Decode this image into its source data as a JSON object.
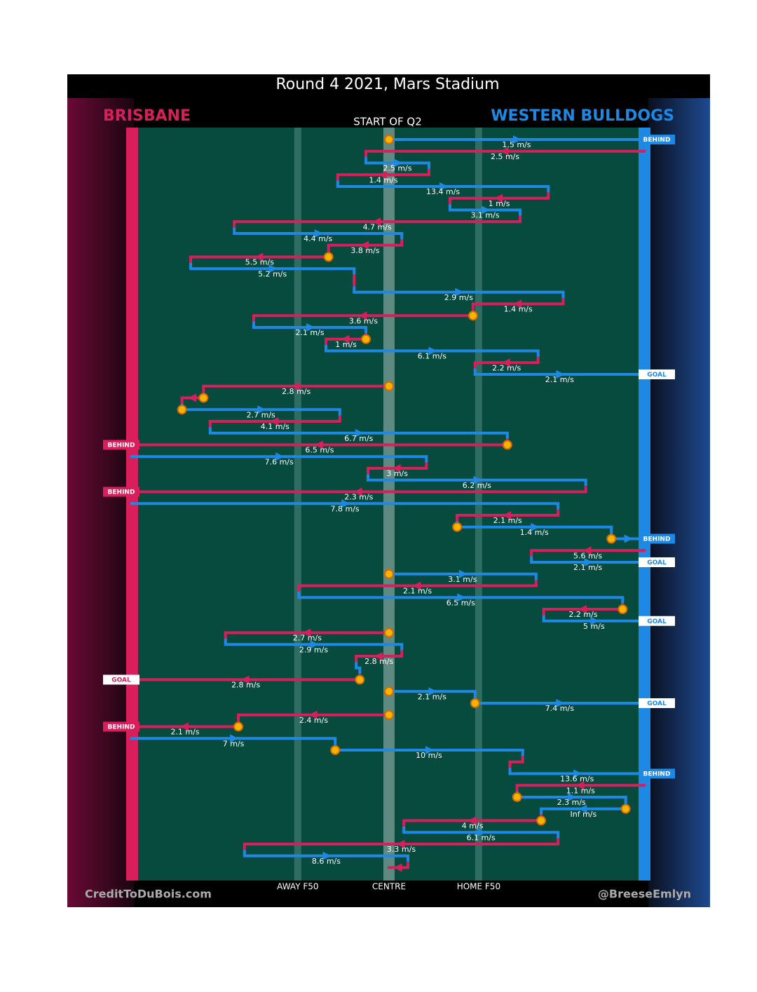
{
  "chart_data": {
    "type": "possession-chain",
    "title": "Round 4 2021, Mars Stadium",
    "subtitle": "START OF Q2",
    "credit": "CreditToDuBois.com",
    "author": "@BreeseEmlyn",
    "teams": [
      {
        "name": "BRISBANE",
        "color": "#d81e5b"
      },
      {
        "name": "WESTERN BULLDOGS",
        "color": "#1e88e5"
      }
    ],
    "xlim": [
      0,
      100
    ],
    "xticks": [
      {
        "value": 32.4,
        "label": "AWAY F50"
      },
      {
        "value": 50.2,
        "label": "CENTRE"
      },
      {
        "value": 67.7,
        "label": "HOME F50"
      }
    ],
    "segments": [
      {
        "team": 1,
        "from": 50.2,
        "to": 100,
        "label": "1.5 m/s",
        "stoppage": true,
        "result": "BEHIND"
      },
      {
        "team": 0,
        "from": 100,
        "to": 45.7,
        "label": "2.5 m/s"
      },
      {
        "team": 1,
        "from": 45.7,
        "to": 58,
        "label": "2.5 m/s"
      },
      {
        "team": 0,
        "from": 58,
        "to": 40.2,
        "label": "1.4 m/s"
      },
      {
        "team": 1,
        "from": 40.2,
        "to": 81.3,
        "label": "13.4 m/s"
      },
      {
        "team": 0,
        "from": 81.3,
        "to": 62.1,
        "label": "1 m/s"
      },
      {
        "team": 1,
        "from": 62.1,
        "to": 75.8,
        "label": "3.1 m/s"
      },
      {
        "team": 0,
        "from": 75.8,
        "to": 20,
        "label": "4.7 m/s"
      },
      {
        "team": 1,
        "from": 20,
        "to": 52.7,
        "label": "4.4 m/s"
      },
      {
        "team": 0,
        "from": 52.7,
        "to": 38.4,
        "label": "3.8 m/s"
      },
      {
        "team": 0,
        "from": 38.4,
        "to": 11.5,
        "label": "5.5 m/s",
        "stoppage": true
      },
      {
        "team": 1,
        "from": 11.5,
        "to": 43.4,
        "label": "5.2 m/s"
      },
      {
        "team": 0,
        "from": 43.4,
        "to": 43.4
      },
      {
        "team": 1,
        "from": 43.4,
        "to": 84.2,
        "label": "2.9 m/s"
      },
      {
        "team": 0,
        "from": 84.2,
        "to": 66.6,
        "label": "1.4 m/s"
      },
      {
        "team": 0,
        "from": 66.6,
        "to": 23.8,
        "label": "3.6 m/s",
        "stoppage": true
      },
      {
        "team": 1,
        "from": 23.8,
        "to": 45.7,
        "label": "2.1 m/s"
      },
      {
        "team": 0,
        "from": 45.7,
        "to": 37.9,
        "label": "1 m/s",
        "stoppage": true
      },
      {
        "team": 1,
        "from": 37.9,
        "to": 79.3,
        "label": "6.1 m/s"
      },
      {
        "team": 0,
        "from": 79.3,
        "to": 67,
        "label": "2.2 m/s"
      },
      {
        "team": 1,
        "from": 67,
        "to": 100,
        "label": "2.1 m/s",
        "result": "GOAL"
      },
      {
        "team": 0,
        "from": 50.2,
        "to": 14,
        "label": "2.8 m/s",
        "stoppage": true
      },
      {
        "team": 0,
        "from": 14,
        "to": 9.8,
        "stoppage": true
      },
      {
        "team": 1,
        "from": 9.8,
        "to": 40.6,
        "label": "2.7 m/s",
        "stoppage": true
      },
      {
        "team": 0,
        "from": 40.6,
        "to": 15.3,
        "label": "4.1 m/s"
      },
      {
        "team": 1,
        "from": 15.3,
        "to": 73.3,
        "label": "6.7 m/s"
      },
      {
        "team": 0,
        "from": 73.3,
        "to": 0,
        "label": "6.5 m/s",
        "stoppage": true,
        "result": "BEHIND"
      },
      {
        "team": 1,
        "from": 0,
        "to": 57.5,
        "label": "7.6 m/s"
      },
      {
        "team": 0,
        "from": 57.5,
        "to": 46.1,
        "label": "3 m/s"
      },
      {
        "team": 1,
        "from": 46.1,
        "to": 88.6,
        "label": "6.2 m/s"
      },
      {
        "team": 0,
        "from": 88.6,
        "to": 0,
        "label": "2.3 m/s",
        "result": "BEHIND"
      },
      {
        "team": 1,
        "from": 0,
        "to": 83.2,
        "label": "7.8 m/s"
      },
      {
        "team": 0,
        "from": 83.2,
        "to": 63.5,
        "label": "2.1 m/s"
      },
      {
        "team": 1,
        "from": 63.5,
        "to": 93.6,
        "label": "1.4 m/s",
        "stoppage": true
      },
      {
        "team": 1,
        "from": 93.6,
        "to": 100,
        "stoppage": true,
        "result": "BEHIND"
      },
      {
        "team": 0,
        "from": 100,
        "to": 78,
        "label": "5.6 m/s"
      },
      {
        "team": 1,
        "from": 78,
        "to": 100,
        "label": "2.1 m/s",
        "result": "GOAL"
      },
      {
        "team": 1,
        "from": 50.2,
        "to": 78.9,
        "label": "3.1 m/s",
        "stoppage": true
      },
      {
        "team": 0,
        "from": 78.9,
        "to": 32.6,
        "label": "2.1 m/s"
      },
      {
        "team": 1,
        "from": 32.6,
        "to": 95.8,
        "label": "6.5 m/s"
      },
      {
        "team": 0,
        "from": 95.8,
        "to": 80.4,
        "label": "2.2 m/s",
        "stoppage": true
      },
      {
        "team": 1,
        "from": 80.4,
        "to": 100,
        "label": "5 m/s",
        "result": "GOAL"
      },
      {
        "team": 0,
        "from": 50.2,
        "to": 18.3,
        "label": "2.7 m/s",
        "stoppage": true
      },
      {
        "team": 1,
        "from": 18.3,
        "to": 52.7,
        "label": "2.9 m/s"
      },
      {
        "team": 0,
        "from": 52.7,
        "to": 43.8,
        "label": "2.8 m/s"
      },
      {
        "team": 1,
        "from": 43.8,
        "to": 44.5
      },
      {
        "team": 0,
        "from": 44.5,
        "to": 0,
        "label": "2.8 m/s",
        "stoppage": true,
        "result": "GOAL"
      },
      {
        "team": 1,
        "from": 50.2,
        "to": 67,
        "label": "2.1 m/s",
        "stoppage": true
      },
      {
        "team": 1,
        "from": 67,
        "to": 100,
        "label": "7.4 m/s",
        "stoppage": true,
        "result": "GOAL"
      },
      {
        "team": 0,
        "from": 50.2,
        "to": 20.8,
        "label": "2.4 m/s",
        "stoppage": true
      },
      {
        "team": 0,
        "from": 20.8,
        "to": 0,
        "label": "2.1 m/s",
        "stoppage": true,
        "result": "BEHIND"
      },
      {
        "team": 1,
        "from": 0,
        "to": 39.7,
        "label": "7 m/s"
      },
      {
        "team": 1,
        "from": 39.7,
        "to": 76.3,
        "label": "10 m/s",
        "stoppage": true
      },
      {
        "team": 0,
        "from": 76.3,
        "to": 73.8
      },
      {
        "team": 1,
        "from": 73.8,
        "to": 100,
        "label": "13.6 m/s",
        "result": "BEHIND"
      },
      {
        "team": 0,
        "from": 100,
        "to": 75.2,
        "label": "1.1 m/s"
      },
      {
        "team": 1,
        "from": 75.2,
        "to": 96.4,
        "label": "2.3 m/s",
        "stoppage": true
      },
      {
        "team": 1,
        "from": 96.4,
        "to": 79.9,
        "label": "Inf m/s",
        "stoppage": true
      },
      {
        "team": 0,
        "from": 79.9,
        "to": 53.1,
        "label": "4 m/s",
        "stoppage": true
      },
      {
        "team": 1,
        "from": 53.1,
        "to": 83.2,
        "label": "6.1 m/s"
      },
      {
        "team": 0,
        "from": 83.2,
        "to": 22,
        "label": "3.3 m/s"
      },
      {
        "team": 1,
        "from": 22,
        "to": 53.9,
        "label": "8.6 m/s"
      },
      {
        "team": 0,
        "from": 53.9,
        "to": 50.2
      }
    ]
  }
}
